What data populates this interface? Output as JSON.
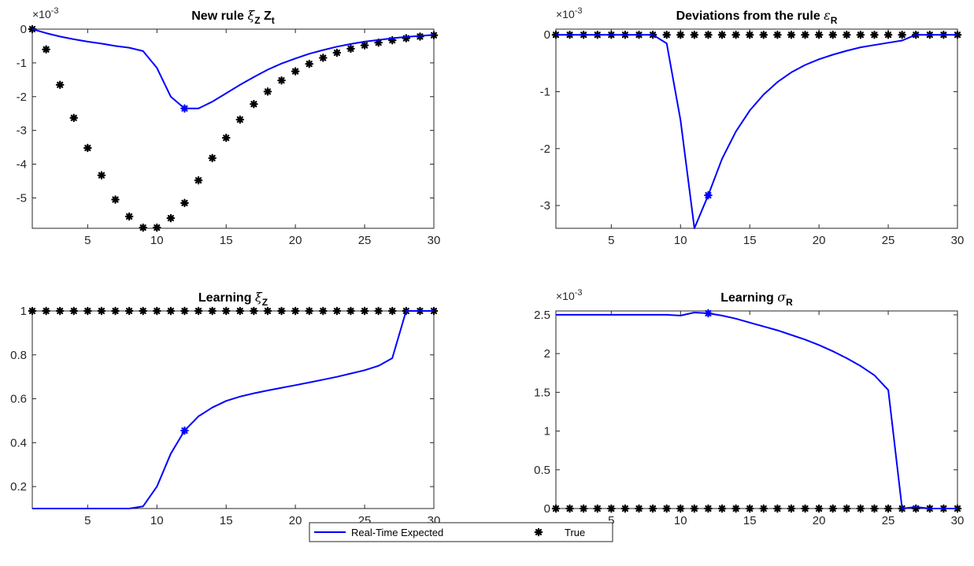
{
  "chart_data": [
    {
      "type": "line",
      "title": "New rule ξZ Zt",
      "title_parts": [
        "New rule ",
        "ξ",
        "Z",
        " Z",
        "t"
      ],
      "xlim": [
        1,
        30
      ],
      "ylim": [
        -5.9,
        0
      ],
      "xticks": [
        5,
        10,
        15,
        20,
        25,
        30
      ],
      "yticks": [
        0,
        -1,
        -2,
        -3,
        -4,
        -5
      ],
      "ytick_labels": [
        "0",
        "-1",
        "-2",
        "-3",
        "-4",
        "-5"
      ],
      "multiplier": {
        "base": "×10",
        "exp": "-3"
      },
      "x": [
        1,
        2,
        3,
        4,
        5,
        6,
        7,
        8,
        9,
        10,
        11,
        12,
        13,
        14,
        15,
        16,
        17,
        18,
        19,
        20,
        21,
        22,
        23,
        24,
        25,
        26,
        27,
        28,
        29,
        30
      ],
      "series": [
        {
          "name": "Real-Time Expected",
          "color": "#0000ff",
          "style": "line",
          "values": [
            0,
            -0.12,
            -0.22,
            -0.3,
            -0.37,
            -0.43,
            -0.5,
            -0.55,
            -0.65,
            -1.15,
            -2.0,
            -2.35,
            -2.35,
            -2.15,
            -1.9,
            -1.65,
            -1.42,
            -1.2,
            -1.02,
            -0.87,
            -0.73,
            -0.62,
            -0.52,
            -0.44,
            -0.37,
            -0.32,
            -0.27,
            -0.23,
            -0.2,
            -0.17
          ]
        },
        {
          "name": "True",
          "color": "#000000",
          "style": "marker",
          "values": [
            0,
            -0.6,
            -1.65,
            -2.63,
            -3.52,
            -4.33,
            -5.05,
            -5.55,
            -5.88,
            -5.88,
            -5.6,
            -5.15,
            -4.48,
            -3.82,
            -3.22,
            -2.68,
            -2.22,
            -1.85,
            -1.52,
            -1.25,
            -1.03,
            -0.85,
            -0.7,
            -0.58,
            -0.48,
            -0.4,
            -0.33,
            -0.27,
            -0.22,
            -0.18
          ]
        }
      ],
      "marker_index": 12
    },
    {
      "type": "line",
      "title": "Deviations from the rule εR",
      "title_parts": [
        "Deviations from the rule ",
        "ε",
        "R",
        "",
        ""
      ],
      "xlim": [
        1,
        30
      ],
      "ylim": [
        -3.4,
        0.1
      ],
      "xticks": [
        5,
        10,
        15,
        20,
        25,
        30
      ],
      "yticks": [
        0,
        -1,
        -2,
        -3
      ],
      "ytick_labels": [
        "0",
        "-1",
        "-2",
        "-3"
      ],
      "multiplier": {
        "base": "×10",
        "exp": "-3"
      },
      "x": [
        1,
        2,
        3,
        4,
        5,
        6,
        7,
        8,
        9,
        10,
        11,
        12,
        13,
        14,
        15,
        16,
        17,
        18,
        19,
        20,
        21,
        22,
        23,
        24,
        25,
        26,
        27,
        28,
        29,
        30
      ],
      "series": [
        {
          "name": "Real-Time Expected",
          "color": "#0000ff",
          "style": "line",
          "values": [
            0,
            0,
            0,
            0,
            0,
            0,
            0,
            0,
            -0.15,
            -1.5,
            -3.4,
            -2.82,
            -2.18,
            -1.7,
            -1.33,
            -1.05,
            -0.83,
            -0.66,
            -0.53,
            -0.43,
            -0.35,
            -0.28,
            -0.22,
            -0.18,
            -0.14,
            -0.1,
            0,
            0,
            0,
            0
          ]
        },
        {
          "name": "True",
          "color": "#000000",
          "style": "marker",
          "values": [
            0,
            0,
            0,
            0,
            0,
            0,
            0,
            0,
            0,
            0,
            0,
            0,
            0,
            0,
            0,
            0,
            0,
            0,
            0,
            0,
            0,
            0,
            0,
            0,
            0,
            0,
            0,
            0,
            0,
            0
          ]
        }
      ],
      "marker_index": 12
    },
    {
      "type": "line",
      "title": "Learning ξZ",
      "title_parts": [
        "Learning ",
        "ξ",
        "Z",
        "",
        ""
      ],
      "xlim": [
        1,
        30
      ],
      "ylim": [
        0.1,
        1
      ],
      "xticks": [
        5,
        10,
        15,
        20,
        25,
        30
      ],
      "yticks": [
        1,
        0.8,
        0.6,
        0.4,
        0.2
      ],
      "ytick_labels": [
        "1",
        "0.8",
        "0.6",
        "0.4",
        "0.2"
      ],
      "multiplier": null,
      "x": [
        1,
        2,
        3,
        4,
        5,
        6,
        7,
        8,
        9,
        10,
        11,
        12,
        13,
        14,
        15,
        16,
        17,
        18,
        19,
        20,
        21,
        22,
        23,
        24,
        25,
        26,
        27,
        28,
        29,
        30
      ],
      "series": [
        {
          "name": "Real-Time Expected",
          "color": "#0000ff",
          "style": "line",
          "values": [
            0.1,
            0.1,
            0.1,
            0.1,
            0.1,
            0.1,
            0.1,
            0.1,
            0.11,
            0.2,
            0.35,
            0.455,
            0.52,
            0.56,
            0.59,
            0.61,
            0.625,
            0.638,
            0.65,
            0.662,
            0.674,
            0.687,
            0.7,
            0.715,
            0.73,
            0.75,
            0.785,
            1,
            1,
            1
          ]
        },
        {
          "name": "True",
          "color": "#000000",
          "style": "marker",
          "values": [
            1,
            1,
            1,
            1,
            1,
            1,
            1,
            1,
            1,
            1,
            1,
            1,
            1,
            1,
            1,
            1,
            1,
            1,
            1,
            1,
            1,
            1,
            1,
            1,
            1,
            1,
            1,
            1,
            1,
            1
          ]
        }
      ],
      "marker_index": 12
    },
    {
      "type": "line",
      "title": "Learning σR",
      "title_parts": [
        "Learning ",
        "σ",
        "R",
        "",
        ""
      ],
      "xlim": [
        1,
        30
      ],
      "ylim": [
        0,
        2.55
      ],
      "xticks": [
        5,
        10,
        15,
        20,
        25,
        30
      ],
      "yticks": [
        2.5,
        2,
        1.5,
        1,
        0.5,
        0
      ],
      "ytick_labels": [
        "2.5",
        "2",
        "1.5",
        "1",
        "0.5",
        "0"
      ],
      "multiplier": {
        "base": "×10",
        "exp": "-3"
      },
      "x": [
        1,
        2,
        3,
        4,
        5,
        6,
        7,
        8,
        9,
        10,
        11,
        12,
        13,
        14,
        15,
        16,
        17,
        18,
        19,
        20,
        21,
        22,
        23,
        24,
        25,
        26,
        27,
        28,
        29,
        30
      ],
      "series": [
        {
          "name": "Real-Time Expected",
          "color": "#0000ff",
          "style": "line",
          "values": [
            2.5,
            2.5,
            2.5,
            2.5,
            2.5,
            2.5,
            2.5,
            2.5,
            2.5,
            2.49,
            2.53,
            2.52,
            2.49,
            2.45,
            2.4,
            2.35,
            2.3,
            2.24,
            2.18,
            2.11,
            2.03,
            1.94,
            1.84,
            1.72,
            1.53,
            0,
            0.02,
            0,
            0,
            0
          ]
        },
        {
          "name": "True",
          "color": "#000000",
          "style": "marker",
          "values": [
            0,
            0,
            0,
            0,
            0,
            0,
            0,
            0,
            0,
            0,
            0,
            0,
            0,
            0,
            0,
            0,
            0,
            0,
            0,
            0,
            0,
            0,
            0,
            0,
            0,
            0,
            0,
            0,
            0,
            0
          ]
        }
      ],
      "marker_index": 12
    }
  ],
  "legend": {
    "position": "bottom-center",
    "entries": [
      {
        "label": "Real-Time Expected",
        "color": "#0000ff",
        "style": "line"
      },
      {
        "label": "True",
        "color": "#000000",
        "style": "marker"
      }
    ]
  }
}
